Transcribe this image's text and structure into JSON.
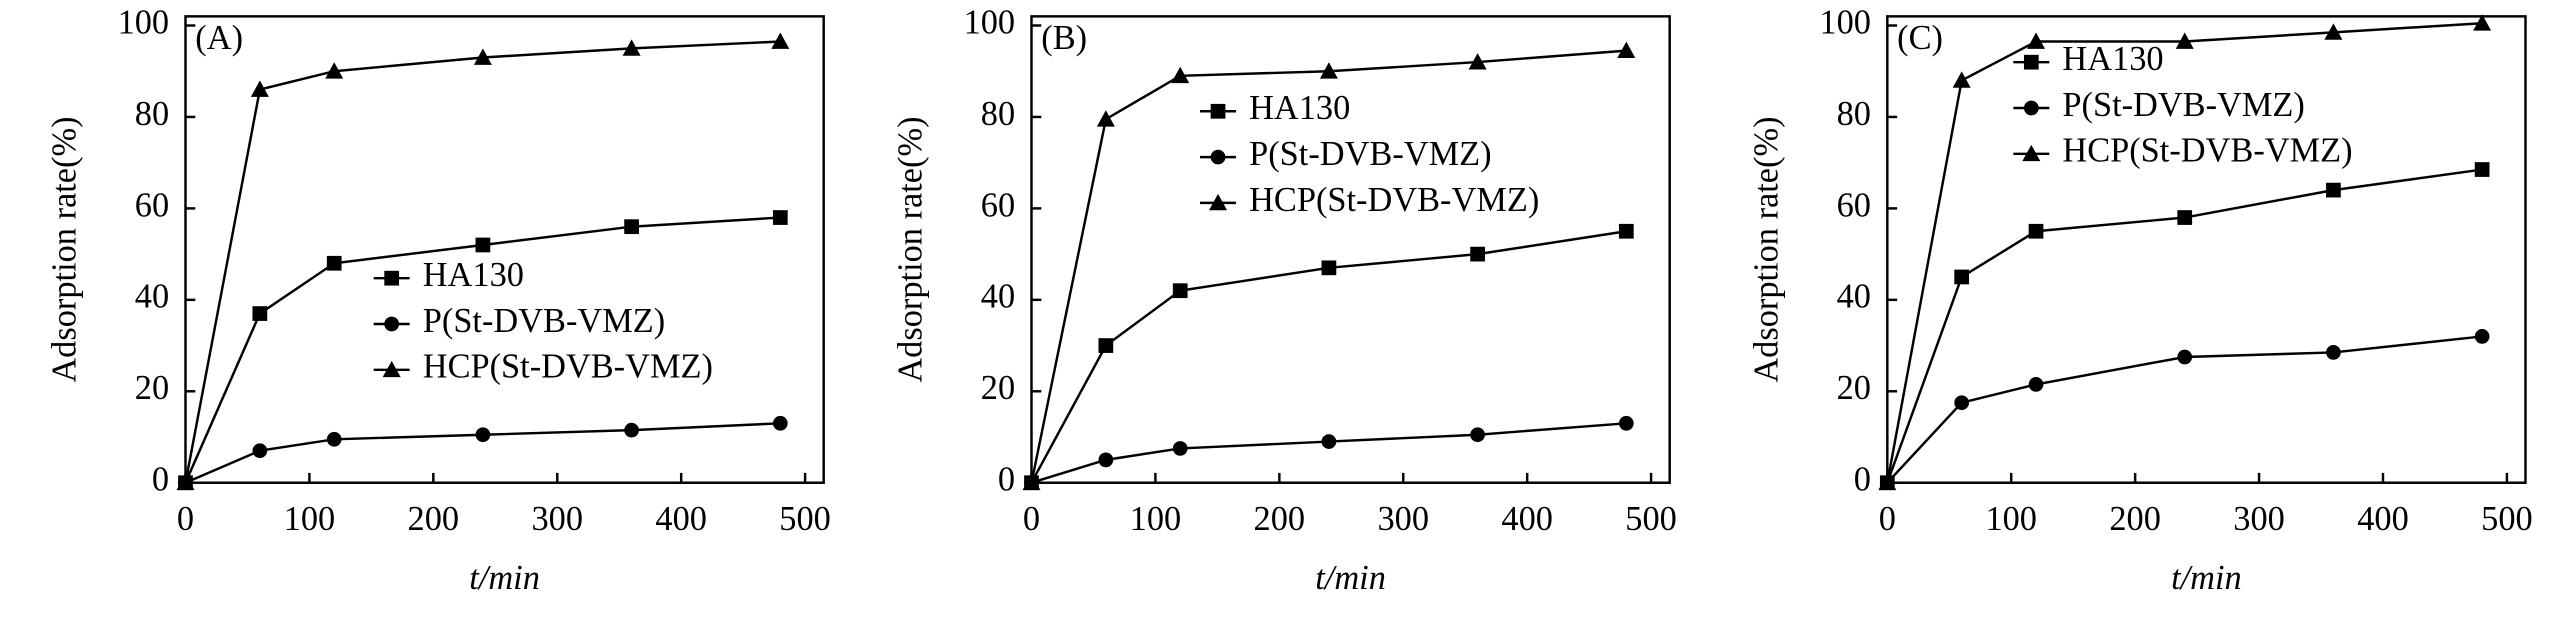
{
  "chart_data": [
    {
      "type": "line",
      "panel_label": "(A)",
      "x_label": "t/min",
      "y_label": "Adsorption rate(%)",
      "x": [
        0,
        60,
        120,
        240,
        360,
        480
      ],
      "xlim": [
        0,
        515
      ],
      "ylim": [
        0,
        102
      ],
      "xticks": [
        0,
        100,
        200,
        300,
        400,
        500
      ],
      "yticks": [
        0,
        20,
        40,
        60,
        80,
        100
      ],
      "legend": "center right",
      "series": [
        {
          "name": "HA130",
          "color": "#000000",
          "marker": "square",
          "values": [
            0,
            37,
            48,
            52,
            56,
            58
          ]
        },
        {
          "name": "P(St-DVB-VMZ)",
          "color": "#000000",
          "marker": "circle",
          "values": [
            0,
            7,
            9.5,
            10.5,
            11.5,
            13
          ]
        },
        {
          "name": "HCP(St-DVB-VMZ)",
          "color": "#000000",
          "marker": "triangle",
          "values": [
            0,
            86,
            90,
            93,
            95,
            96.5
          ]
        }
      ]
    },
    {
      "type": "line",
      "panel_label": "(B)",
      "x_label": "t/min",
      "y_label": "Adsorption rate(%)",
      "x": [
        0,
        60,
        120,
        240,
        360,
        480
      ],
      "xlim": [
        0,
        515
      ],
      "ylim": [
        0,
        102
      ],
      "xticks": [
        0,
        100,
        200,
        300,
        400,
        500
      ],
      "yticks": [
        0,
        20,
        40,
        60,
        80,
        100
      ],
      "legend": "upper center",
      "series": [
        {
          "name": "HA130",
          "color": "#000000",
          "marker": "square",
          "values": [
            0,
            30,
            42,
            47,
            50,
            55
          ]
        },
        {
          "name": "P(St-DVB-VMZ)",
          "color": "#000000",
          "marker": "circle",
          "values": [
            0,
            5,
            7.5,
            9,
            10.5,
            13
          ]
        },
        {
          "name": "HCP(St-DVB-VMZ)",
          "color": "#000000",
          "marker": "triangle",
          "values": [
            0,
            79.5,
            89,
            90,
            92,
            94.5
          ]
        }
      ]
    },
    {
      "type": "line",
      "panel_label": "(C)",
      "x_label": "t/min",
      "y_label": "Adsorption rate(%)",
      "x": [
        0,
        60,
        120,
        240,
        360,
        480
      ],
      "xlim": [
        0,
        515
      ],
      "ylim": [
        0,
        102
      ],
      "xticks": [
        0,
        100,
        200,
        300,
        400,
        500
      ],
      "yticks": [
        0,
        20,
        40,
        60,
        80,
        100
      ],
      "legend": "upper left",
      "series": [
        {
          "name": "HA130",
          "color": "#000000",
          "marker": "square",
          "values": [
            0,
            45,
            55,
            58,
            64,
            68.5
          ]
        },
        {
          "name": "P(St-DVB-VMZ)",
          "color": "#000000",
          "marker": "circle",
          "values": [
            0,
            17.5,
            21.5,
            27.5,
            28.5,
            32
          ]
        },
        {
          "name": "HCP(St-DVB-VMZ)",
          "color": "#000000",
          "marker": "triangle",
          "values": [
            0,
            88,
            96.5,
            96.5,
            98.5,
            100.5
          ]
        }
      ]
    }
  ]
}
